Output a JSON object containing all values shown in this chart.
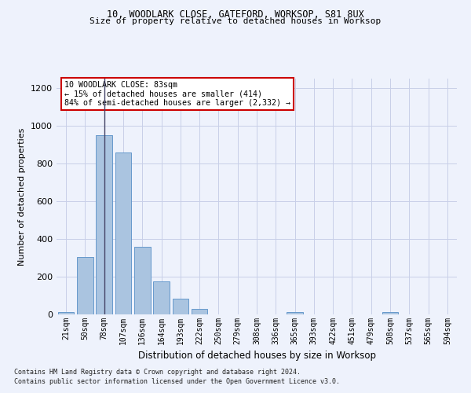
{
  "title1": "10, WOODLARK CLOSE, GATEFORD, WORKSOP, S81 8UX",
  "title2": "Size of property relative to detached houses in Worksop",
  "xlabel": "Distribution of detached houses by size in Worksop",
  "ylabel": "Number of detached properties",
  "footnote1": "Contains HM Land Registry data © Crown copyright and database right 2024.",
  "footnote2": "Contains public sector information licensed under the Open Government Licence v3.0.",
  "annotation_title": "10 WOODLARK CLOSE: 83sqm",
  "annotation_line1": "← 15% of detached houses are smaller (414)",
  "annotation_line2": "84% of semi-detached houses are larger (2,332) →",
  "bar_labels": [
    "21sqm",
    "50sqm",
    "78sqm",
    "107sqm",
    "136sqm",
    "164sqm",
    "193sqm",
    "222sqm",
    "250sqm",
    "279sqm",
    "308sqm",
    "336sqm",
    "365sqm",
    "393sqm",
    "422sqm",
    "451sqm",
    "479sqm",
    "508sqm",
    "537sqm",
    "565sqm",
    "594sqm"
  ],
  "bar_values": [
    12,
    305,
    950,
    860,
    360,
    175,
    85,
    30,
    0,
    0,
    0,
    0,
    12,
    0,
    0,
    0,
    0,
    12,
    0,
    0,
    0
  ],
  "highlight_bar_index": 2,
  "bar_color": "#aac4e0",
  "bar_edge_color": "#6699cc",
  "highlight_line_color": "#444466",
  "annotation_box_color": "#ffffff",
  "annotation_box_edge": "#cc0000",
  "bg_color": "#eef2fc",
  "grid_color": "#c8cfe8",
  "ylim": [
    0,
    1250
  ],
  "yticks": [
    0,
    200,
    400,
    600,
    800,
    1000,
    1200
  ]
}
